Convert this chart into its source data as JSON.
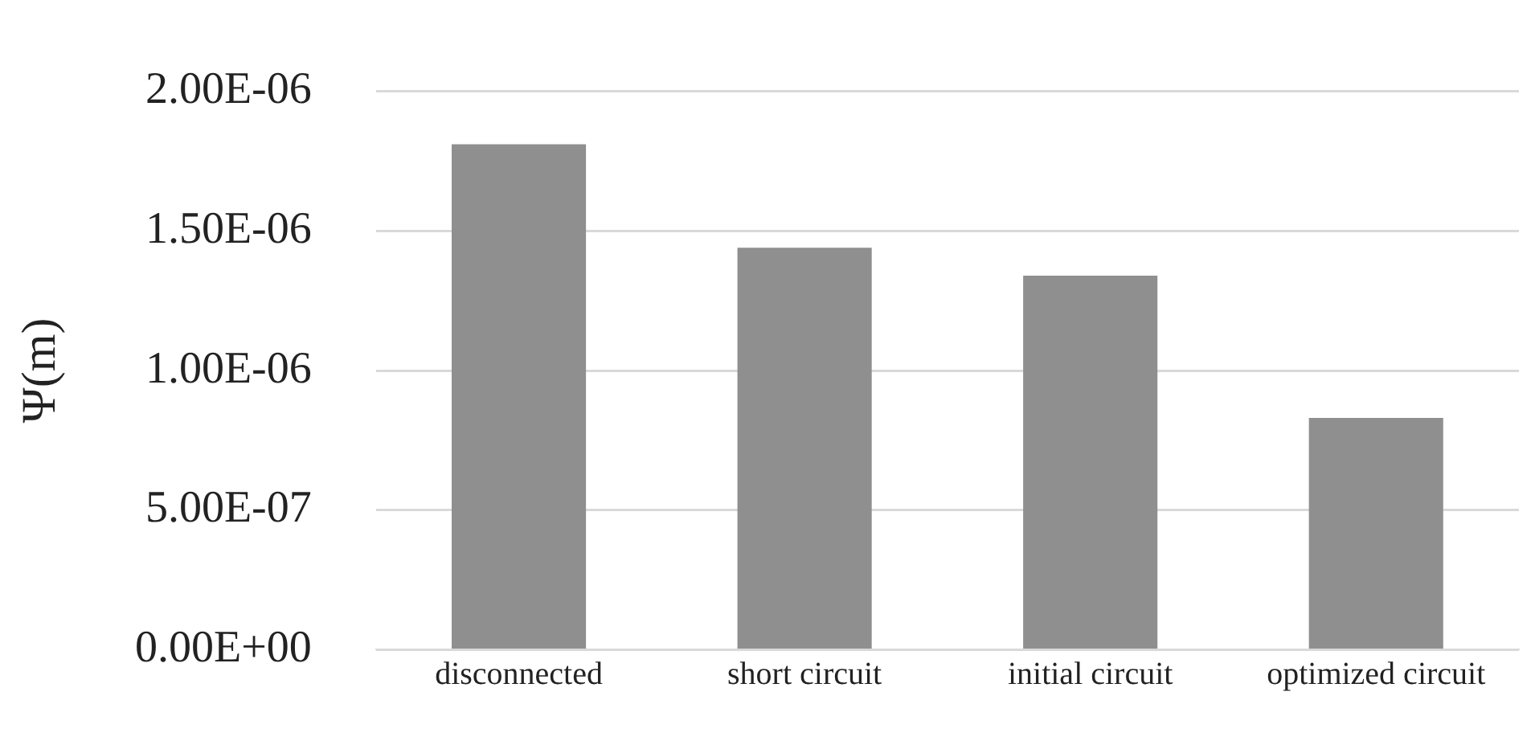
{
  "chart_data": {
    "type": "bar",
    "ylabel": "Ψ(m)",
    "categories": [
      "disconnected",
      "short circuit",
      "initial circuit",
      "optimized circuit"
    ],
    "values": [
      1.81e-06,
      1.44e-06,
      1.34e-06,
      8.3e-07
    ],
    "color": "#8f8f8f",
    "ylim": [
      0,
      2e-06
    ],
    "yticks": [
      {
        "value": 0,
        "label": "0.00E+00"
      },
      {
        "value": 5e-07,
        "label": "5.00E-07"
      },
      {
        "value": 1e-06,
        "label": "1.00E-06"
      },
      {
        "value": 1.5e-06,
        "label": "1.50E-06"
      },
      {
        "value": 2e-06,
        "label": "2.00E-06"
      }
    ],
    "grid": "y",
    "legend": false
  }
}
